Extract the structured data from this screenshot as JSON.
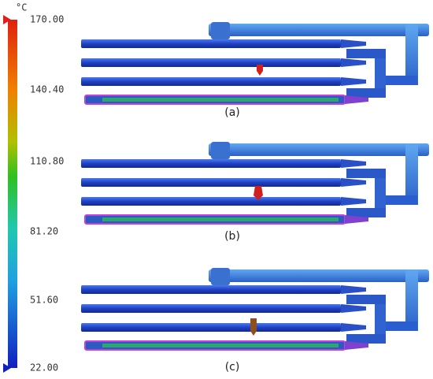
{
  "colorbar": {
    "unit": "°C",
    "labels": [
      "170.00",
      "140.40",
      "110.80",
      "81.20",
      "51.60",
      "22.00"
    ]
  },
  "panels": [
    {
      "label": "(a)"
    },
    {
      "label": "(b)"
    },
    {
      "label": "(c)"
    }
  ]
}
